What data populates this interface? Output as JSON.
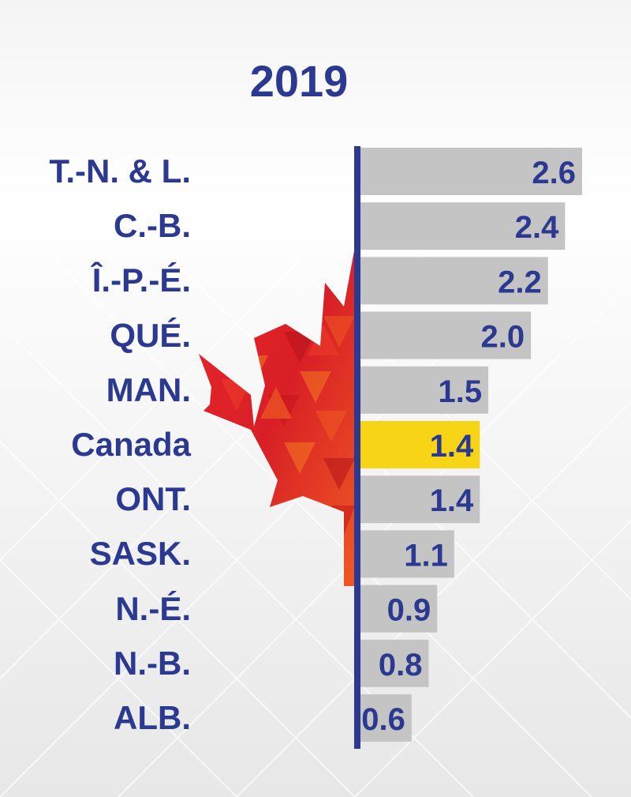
{
  "colors": {
    "axis": "#2b3990",
    "label": "#2b3990",
    "bar": "#c4c4c4",
    "highlight": "#f7d516"
  },
  "icons": [
    "maple-leaf-icon"
  ],
  "chart_data": {
    "type": "bar",
    "orientation": "horizontal",
    "title": "2019",
    "categories": [
      "T.-N. & L.",
      "C.-B.",
      "Î.-P.-É.",
      "QUÉ.",
      "MAN.",
      "Canada",
      "ONT.",
      "SASK.",
      "N.-É.",
      "N.-B.",
      "ALB."
    ],
    "values": [
      2.6,
      2.4,
      2.2,
      2.0,
      1.5,
      1.4,
      1.4,
      1.1,
      0.9,
      0.8,
      0.6
    ],
    "value_labels": [
      "2.6",
      "2.4",
      "2.2",
      "2.0",
      "1.5",
      "1.4",
      "1.4",
      "1.1",
      "0.9",
      "0.8",
      "0.6"
    ],
    "highlight_category": "Canada",
    "xlim": [
      0,
      2.6
    ],
    "grid": false,
    "legend": "none"
  }
}
